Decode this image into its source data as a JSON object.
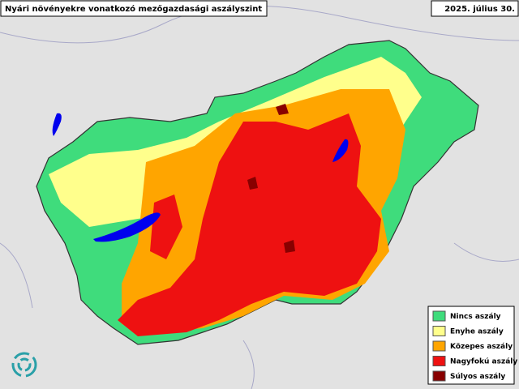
{
  "header": {
    "title": "Nyári növényekre vonatkozó mezőgazdasági aszályszint",
    "date": "2025. július 30."
  },
  "legend": {
    "items": [
      {
        "label": "Nincs aszály",
        "color": "#3fdc7c"
      },
      {
        "label": "Enyhe aszály",
        "color": "#ffff8c"
      },
      {
        "label": "Közepes aszály",
        "color": "#ffa500"
      },
      {
        "label": "Nagyfokú aszály",
        "color": "#ee1111"
      },
      {
        "label": "Súlyos aszály",
        "color": "#880000"
      }
    ]
  }
}
